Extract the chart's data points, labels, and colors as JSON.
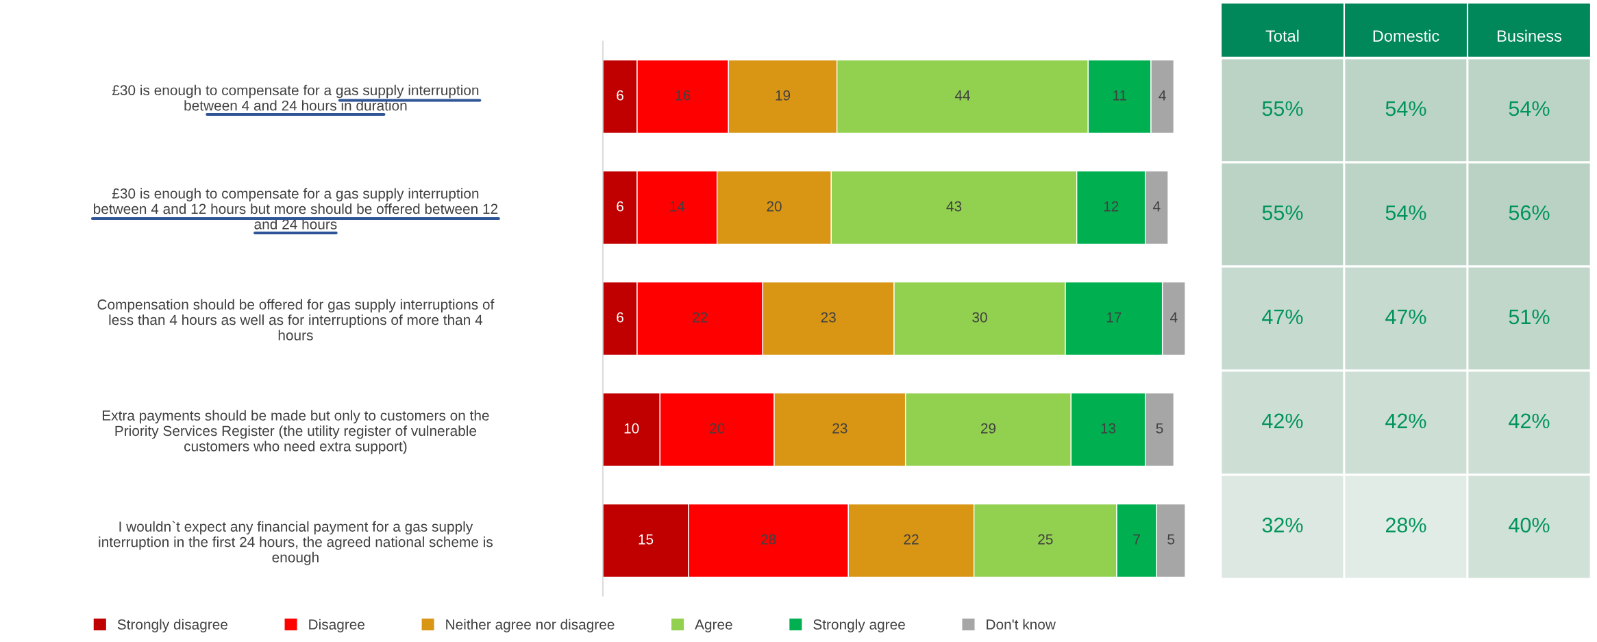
{
  "chart_data": [
    {
      "type": "bar",
      "orientation": "horizontal",
      "stacked": true,
      "data_labels": true,
      "legend": "bottom",
      "grid": false,
      "tick_labels": "y",
      "categories": [
        "£30 is enough to compensate for a gas supply interruption\nbetween 4 and 24 hours in duration",
        "£30 is enough to compensate for a gas supply interruption\nbetween 4 and 12 hours but more should be offered between 12\nand 24 hours",
        "Compensation should be offered for gas supply interruptions of\nless than 4 hours as well as for interruptions of more than 4\nhours",
        "Extra payments should be made but only to customers on the\nPriority Services Register (the utility register of vulnerable\ncustomers who need extra support)",
        "I wouldn`t expect any financial payment for a gas supply\ninterruption in the first 24 hours, the agreed national scheme is\nenough"
      ],
      "series": [
        {
          "name": "Strongly disagree",
          "color": "#c00000",
          "values": [
            6,
            6,
            6,
            10,
            15
          ]
        },
        {
          "name": "Disagree",
          "color": "#ff0000",
          "values": [
            16,
            14,
            22,
            20,
            28
          ]
        },
        {
          "name": "Neither agree nor disagree",
          "color": "#d99614",
          "values": [
            19,
            20,
            23,
            23,
            22
          ]
        },
        {
          "name": "Agree",
          "color": "#92d050",
          "values": [
            44,
            43,
            30,
            29,
            25
          ]
        },
        {
          "name": "Strongly agree",
          "color": "#00b050",
          "values": [
            11,
            12,
            17,
            13,
            7
          ]
        },
        {
          "name": "Don't know",
          "color": "#a6a6a6",
          "values": [
            4,
            4,
            4,
            5,
            5
          ]
        }
      ]
    },
    {
      "type": "heatmap",
      "tick_labels": "x",
      "categories": [
        "Total",
        "Domestic",
        "Business"
      ],
      "y_categories": [
        null,
        null,
        null,
        null,
        null
      ],
      "cells": [
        [
          55,
          54,
          54
        ],
        [
          55,
          54,
          56
        ],
        [
          47,
          47,
          51
        ],
        [
          42,
          42,
          42
        ],
        [
          32,
          28,
          40
        ]
      ],
      "cell_labels": [
        [
          "55%",
          "54%",
          "54%"
        ],
        [
          "55%",
          "54%",
          "56%"
        ],
        [
          "47%",
          "47%",
          "51%"
        ],
        [
          "42%",
          "42%",
          "42%"
        ],
        [
          "32%",
          "28%",
          "40%"
        ]
      ]
    }
  ]
}
